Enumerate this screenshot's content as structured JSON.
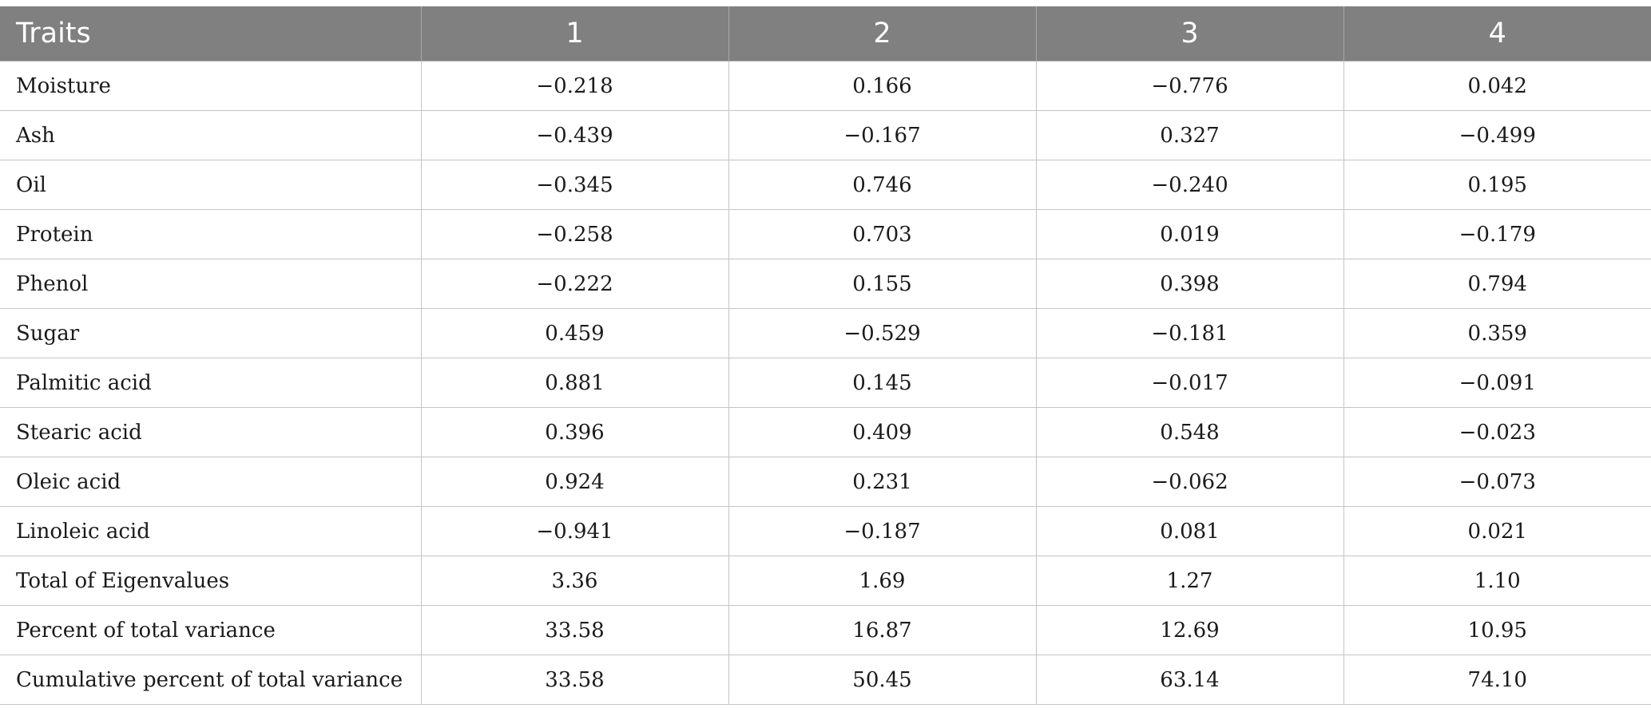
{
  "table": {
    "headers": [
      "Traits",
      "1",
      "2",
      "3",
      "4"
    ],
    "rows": [
      [
        "Moisture",
        "−0.218",
        "0.166",
        "−0.776",
        "0.042"
      ],
      [
        "Ash",
        "−0.439",
        "−0.167",
        "0.327",
        "−0.499"
      ],
      [
        "Oil",
        "−0.345",
        "0.746",
        "−0.240",
        "0.195"
      ],
      [
        "Protein",
        "−0.258",
        "0.703",
        "0.019",
        "−0.179"
      ],
      [
        "Phenol",
        "−0.222",
        "0.155",
        "0.398",
        "0.794"
      ],
      [
        "Sugar",
        "0.459",
        "−0.529",
        "−0.181",
        "0.359"
      ],
      [
        "Palmitic acid",
        "0.881",
        "0.145",
        "−0.017",
        "−0.091"
      ],
      [
        "Stearic acid",
        "0.396",
        "0.409",
        "0.548",
        "−0.023"
      ],
      [
        "Oleic acid",
        "0.924",
        "0.231",
        "−0.062",
        "−0.073"
      ],
      [
        "Linoleic acid",
        "−0.941",
        "−0.187",
        "0.081",
        "0.021"
      ],
      [
        "Total of Eigenvalues",
        "3.36",
        "1.69",
        "1.27",
        "1.10"
      ],
      [
        "Percent of total variance",
        "33.58",
        "16.87",
        "12.69",
        "10.95"
      ],
      [
        "Cumulative percent of total variance",
        "33.58",
        "50.45",
        "63.14",
        "74.10"
      ]
    ]
  },
  "colors": {
    "header_background": "#808080",
    "header_text": "#ffffff",
    "grid_lines": "#c4c4c4",
    "body_text": "#1a1a1a"
  }
}
